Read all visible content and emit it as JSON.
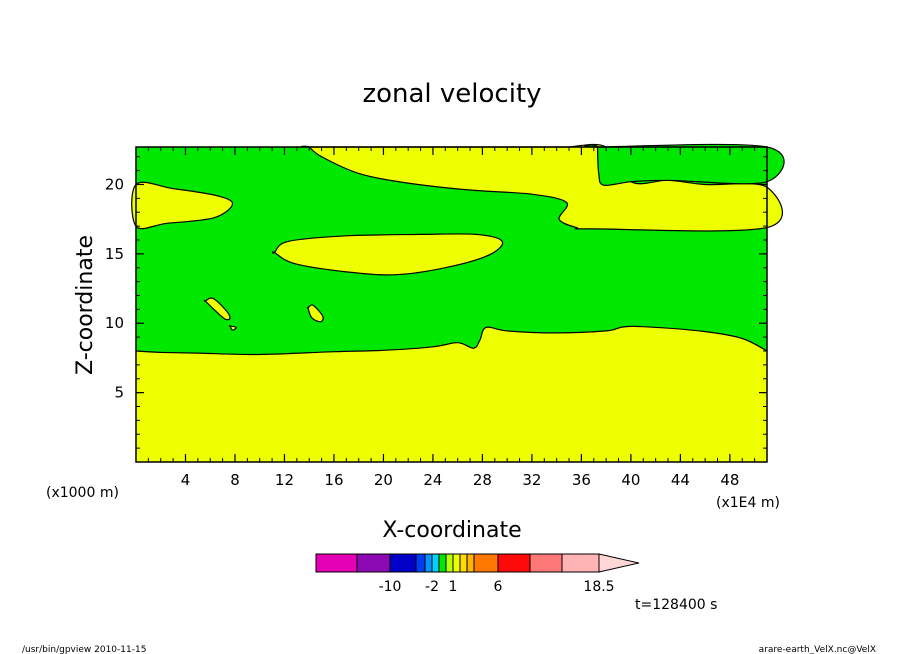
{
  "chart_data": {
    "type": "contour",
    "title": "zonal velocity",
    "xlabel": "X-coordinate",
    "ylabel": "Z-coordinate",
    "x_unit_label": "(x1E4 m)",
    "z_unit_label": "(x1000 m)",
    "xlim": [
      0,
      51
    ],
    "ylim": [
      0,
      22.7
    ],
    "x_ticks": [
      "4",
      "8",
      "12",
      "16",
      "20",
      "24",
      "28",
      "32",
      "36",
      "40",
      "44",
      "48"
    ],
    "y_ticks": [
      "5",
      "10",
      "15",
      "20"
    ],
    "x_minor_step": 1,
    "y_minor_step": 1,
    "region_colors": {
      "positive": "#eeff00",
      "negative": "#00e800"
    },
    "regions": [
      {
        "sign": "positive",
        "label": "lower layer",
        "boundary_x": [
          0,
          2,
          5,
          10,
          16,
          20,
          24,
          26,
          27.3,
          27.8,
          28.3,
          30,
          34,
          38,
          39.3,
          41,
          46,
          49,
          51
        ],
        "boundary_z": [
          8,
          7.9,
          7.85,
          7.75,
          7.95,
          8.05,
          8.3,
          8.6,
          8.2,
          8.8,
          9.7,
          9.45,
          9.3,
          9.45,
          9.72,
          9.75,
          9.4,
          8.9,
          8
        ]
      },
      {
        "sign": "positive",
        "label": "left lens",
        "x": [
          0,
          3,
          6.5,
          7.8,
          6.3,
          2.5,
          0
        ],
        "z": [
          20,
          19.7,
          19.2,
          18.6,
          17.6,
          17.2,
          17
        ]
      },
      {
        "sign": "positive",
        "label": "middle lens",
        "x": [
          11.2,
          12.3,
          17,
          23,
          27.5,
          29.6,
          28.5,
          25,
          21,
          17,
          12.8,
          11.2
        ],
        "z": [
          15.1,
          15.9,
          16.3,
          16.4,
          16.4,
          15.9,
          14.9,
          14,
          13.5,
          13.7,
          14.3,
          15.1
        ]
      },
      {
        "sign": "positive",
        "label": "upper band",
        "x": [
          14,
          22,
          28,
          32,
          33.6,
          34.5,
          35,
          38,
          40,
          43,
          46,
          51,
          51,
          37,
          35.6,
          34.2,
          34.8,
          32,
          27,
          22,
          18,
          15,
          14
        ],
        "z": [
          22.7,
          22.7,
          22.7,
          22.7,
          22.7,
          22.7,
          22.7,
          22.7,
          20.2,
          20.3,
          20,
          19.8,
          16.9,
          16.8,
          16.9,
          17.5,
          18.7,
          19.3,
          19.6,
          20.1,
          20.8,
          22,
          22.7
        ]
      },
      {
        "sign": "negative",
        "label": "upper-right lobe",
        "x": [
          37.3,
          51,
          51,
          43,
          40,
          37.8,
          37.4,
          37.3
        ],
        "z": [
          22.7,
          22.7,
          20.2,
          20.3,
          20.2,
          19.95,
          20.8,
          22.7
        ]
      },
      {
        "sign": "positive",
        "label": "small cell A",
        "x": [
          5.6,
          6.2,
          7.2,
          7.6,
          7.2,
          6.3,
          5.6
        ],
        "z": [
          11.6,
          11.8,
          11,
          10.4,
          10.3,
          11,
          11.6
        ]
      },
      {
        "sign": "positive",
        "label": "small cell B",
        "x": [
          7.6,
          8.1,
          7.8,
          7.6
        ],
        "z": [
          9.8,
          9.7,
          9.5,
          9.8
        ]
      },
      {
        "sign": "positive",
        "label": "small cell C",
        "x": [
          13.9,
          14.3,
          15.1,
          14.9,
          14.2,
          13.9
        ],
        "z": [
          11.1,
          11.3,
          10.5,
          10.1,
          10.4,
          11.1
        ]
      }
    ],
    "colorbar": {
      "colors": [
        "#e400b4",
        "#8c0ab4",
        "#0000c8",
        "#003cf0",
        "#0096ff",
        "#00d2ff",
        "#00e800",
        "#b4ff00",
        "#eeff00",
        "#ffdc00",
        "#ffb400",
        "#ff7800",
        "#ff0a0a",
        "#ff7878",
        "#ffb4b4",
        "#ffd7d7"
      ],
      "widths": [
        41,
        33,
        26,
        9,
        7,
        7,
        7,
        7,
        7,
        7,
        7,
        24,
        32,
        32,
        37,
        40
      ],
      "tick_labels": [
        "-10",
        "-2",
        "1",
        "6",
        "18.5"
      ],
      "tick_after_box": [
        1,
        4,
        7,
        11,
        14
      ]
    }
  },
  "footer": {
    "time_label": "t=128400 s",
    "left_note": "/usr/bin/gpview  2010-11-15",
    "right_note": "arare-earth_VelX.nc@VelX"
  }
}
